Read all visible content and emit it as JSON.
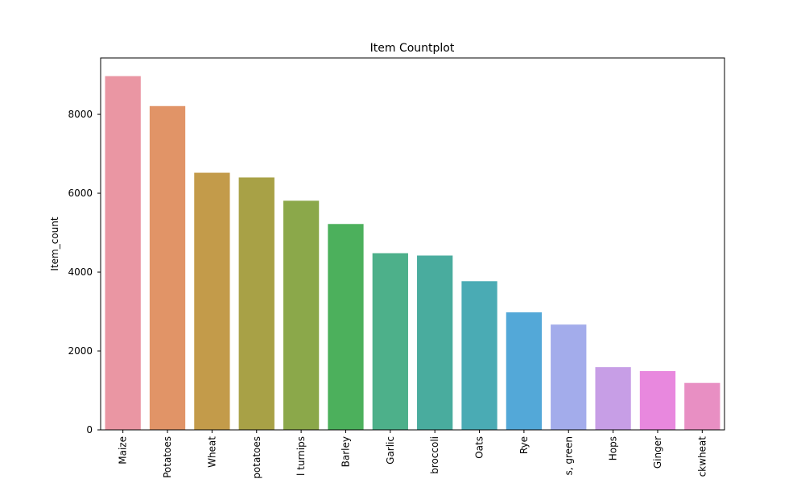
{
  "chart_data": {
    "type": "bar",
    "title": "Item Countplot",
    "y_label": "Item_count",
    "categories": [
      "Maize",
      "Potatoes",
      "Wheat",
      "potatoes",
      "l turnips",
      "Barley",
      "Garlic",
      "broccoli",
      "Oats",
      "Rye",
      "s, green",
      "Hops",
      "Ginger",
      "ckwheat"
    ],
    "values": [
      8970,
      8210,
      6520,
      6400,
      5810,
      5220,
      4480,
      4420,
      3770,
      2980,
      2670,
      1590,
      1490,
      1190
    ],
    "colors": [
      "#ea96a3",
      "#e19467",
      "#c39b4a",
      "#a8a146",
      "#8ba84a",
      "#4cb05c",
      "#4db08a",
      "#49ac9e",
      "#4aabb4",
      "#53a8d8",
      "#a3aceb",
      "#c79ee6",
      "#e888de",
      "#e88fc3"
    ],
    "ylim": [
      0,
      9430
    ],
    "yticks": [
      0,
      2000,
      4000,
      6000,
      8000
    ],
    "grid": false
  }
}
